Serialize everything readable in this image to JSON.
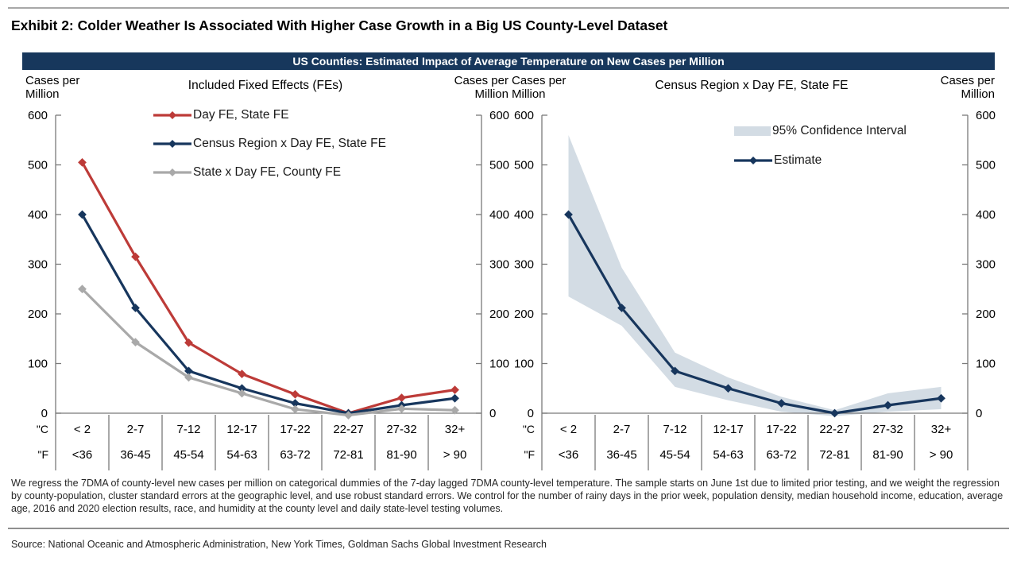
{
  "page": {
    "exhibit_title": "Exhibit 2: Colder Weather Is Associated With Higher Case Growth in a Big US County-Level Dataset",
    "banner_title": "US Counties: Estimated Impact of Average Temperature on New Cases per Million",
    "banner_color": "#17375c",
    "footnote": "We regress the 7DMA of county-level new cases per million on categorical dummies of the 7-day lagged 7DMA county-level temperature. The sample starts on June 1st due to limited prior testing, and we weight the regression by county-population, cluster standard errors at the geographic level, and use robust standard errors. We control for the number of rainy days in the prior week, population density, median household income, education, average age, 2016 and 2020 election results, race, and humidity at the county level and daily state-level testing volumes.",
    "source": "Source: National Oceanic and Atmospheric Administration, New York Times, Goldman Sachs Global Investment Research"
  },
  "chart_data": [
    {
      "type": "line",
      "title": "Included Fixed Effects (FEs)",
      "ylabel_left": "Cases per Million",
      "ylabel_right": "Cases per Million",
      "ylim": [
        0,
        600
      ],
      "ytick_step": 100,
      "grid": false,
      "legend_position": "top-center-inside",
      "x_row_labels": [
        "\"C",
        "\"F"
      ],
      "categories_c": [
        "< 2",
        "2-7",
        "7-12",
        "12-17",
        "17-22",
        "22-27",
        "27-32",
        "32+"
      ],
      "categories_f": [
        "<36",
        "36-45",
        "45-54",
        "54-63",
        "63-72",
        "72-81",
        "81-90",
        "> 90"
      ],
      "series": [
        {
          "name": "Day FE, State FE",
          "color": "#bd3b38",
          "values": [
            505,
            315,
            142,
            79,
            38,
            0,
            31,
            47
          ]
        },
        {
          "name": "Census Region x Day FE, State FE",
          "color": "#17365d",
          "values": [
            400,
            212,
            85,
            50,
            20,
            0,
            16,
            30
          ]
        },
        {
          "name": "State x Day FE, County FE",
          "color": "#a9a9a9",
          "values": [
            250,
            143,
            72,
            40,
            8,
            -4,
            9,
            6
          ]
        }
      ]
    },
    {
      "type": "line",
      "title": "Census Region x Day FE, State FE",
      "ylabel_left": "Cases per Million",
      "ylabel_right": "Cases per Million",
      "ylim": [
        0,
        600
      ],
      "ytick_step": 100,
      "grid": false,
      "legend_position": "top-center-inside",
      "x_row_labels": [
        "\"C",
        "\"F"
      ],
      "categories_c": [
        "< 2",
        "2-7",
        "7-12",
        "12-17",
        "17-22",
        "22-27",
        "27-32",
        "32+"
      ],
      "categories_f": [
        "<36",
        "36-45",
        "45-54",
        "54-63",
        "63-72",
        "72-81",
        "81-90",
        "> 90"
      ],
      "band": {
        "name": "95% Confidence Interval",
        "color": "#d3dce4",
        "upper": [
          560,
          293,
          122,
          72,
          33,
          6,
          40,
          53
        ],
        "lower": [
          235,
          176,
          53,
          26,
          3,
          -6,
          3,
          8
        ]
      },
      "series": [
        {
          "name": "Estimate",
          "color": "#17365d",
          "values": [
            400,
            212,
            85,
            50,
            20,
            0,
            16,
            30
          ]
        }
      ]
    }
  ]
}
